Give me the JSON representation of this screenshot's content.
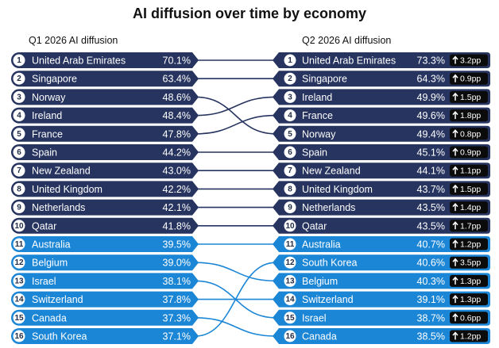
{
  "title": "AI diffusion over time by economy",
  "left_header": "Q1 2026 AI diffusion",
  "right_header": "Q2 2026 AI diffusion",
  "colors": {
    "top_band": "#26345f",
    "bottom_band": "#1c86d6",
    "connector_top": "#26345f",
    "connector_bottom": "#1c86d6",
    "delta_badge": "#0b0b0b",
    "rank_circle": "#ffffff"
  },
  "chart_data": {
    "type": "table",
    "title": "AI diffusion over time by economy",
    "left": {
      "label": "Q1 2026 AI diffusion",
      "rows": [
        {
          "rank": "1",
          "economy": "United Arab Emirates",
          "value": "70.1%"
        },
        {
          "rank": "2",
          "economy": "Singapore",
          "value": "63.4%"
        },
        {
          "rank": "3",
          "economy": "Norway",
          "value": "48.6%"
        },
        {
          "rank": "4",
          "economy": "Ireland",
          "value": "48.4%"
        },
        {
          "rank": "5",
          "economy": "France",
          "value": "47.8%"
        },
        {
          "rank": "6",
          "economy": "Spain",
          "value": "44.2%"
        },
        {
          "rank": "7",
          "economy": "New Zealand",
          "value": "43.0%"
        },
        {
          "rank": "8",
          "economy": "United Kingdom",
          "value": "42.2%"
        },
        {
          "rank": "9",
          "economy": "Netherlands",
          "value": "42.1%"
        },
        {
          "rank": "10",
          "economy": "Qatar",
          "value": "41.8%"
        },
        {
          "rank": "11",
          "economy": "Australia",
          "value": "39.5%"
        },
        {
          "rank": "12",
          "economy": "Belgium",
          "value": "39.0%"
        },
        {
          "rank": "13",
          "economy": "Israel",
          "value": "38.1%"
        },
        {
          "rank": "14",
          "economy": "Switzerland",
          "value": "37.8%"
        },
        {
          "rank": "15",
          "economy": "Canada",
          "value": "37.3%"
        },
        {
          "rank": "16",
          "economy": "South Korea",
          "value": "37.1%"
        }
      ]
    },
    "right": {
      "label": "Q2 2026 AI diffusion",
      "rows": [
        {
          "rank": "1",
          "economy": "United Arab Emirates",
          "value": "73.3%",
          "delta": "3.2pp"
        },
        {
          "rank": "2",
          "economy": "Singapore",
          "value": "64.3%",
          "delta": "0.9pp"
        },
        {
          "rank": "3",
          "economy": "Ireland",
          "value": "49.9%",
          "delta": "1.5pp"
        },
        {
          "rank": "4",
          "economy": "France",
          "value": "49.6%",
          "delta": "1.8pp"
        },
        {
          "rank": "5",
          "economy": "Norway",
          "value": "49.4%",
          "delta": "0.8pp"
        },
        {
          "rank": "6",
          "economy": "Spain",
          "value": "45.1%",
          "delta": "0.9pp"
        },
        {
          "rank": "7",
          "economy": "New Zealand",
          "value": "44.1%",
          "delta": "1.1pp"
        },
        {
          "rank": "8",
          "economy": "United Kingdom",
          "value": "43.7%",
          "delta": "1.5pp"
        },
        {
          "rank": "9",
          "economy": "Netherlands",
          "value": "43.5%",
          "delta": "1.4pp"
        },
        {
          "rank": "10",
          "economy": "Qatar",
          "value": "43.5%",
          "delta": "1.7pp"
        },
        {
          "rank": "11",
          "economy": "Australia",
          "value": "40.7%",
          "delta": "1.2pp"
        },
        {
          "rank": "12",
          "economy": "South Korea",
          "value": "40.6%",
          "delta": "3.5pp"
        },
        {
          "rank": "13",
          "economy": "Belgium",
          "value": "40.3%",
          "delta": "1.3pp"
        },
        {
          "rank": "14",
          "economy": "Switzerland",
          "value": "39.1%",
          "delta": "1.3pp"
        },
        {
          "rank": "15",
          "economy": "Israel",
          "value": "38.7%",
          "delta": "0.6pp"
        },
        {
          "rank": "16",
          "economy": "Canada",
          "value": "38.5%",
          "delta": "1.2pp"
        }
      ]
    },
    "top_group_size": 10
  }
}
